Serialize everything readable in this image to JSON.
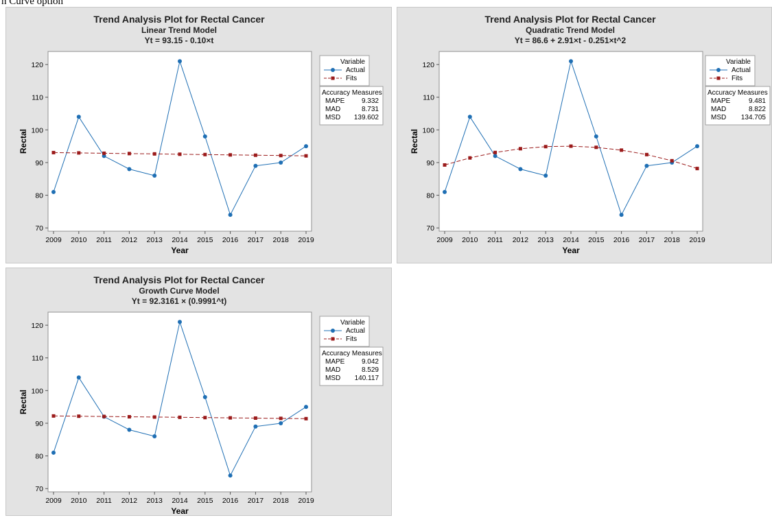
{
  "page": {
    "top_text": "n Curve option"
  },
  "chart_data": [
    {
      "type": "line",
      "title": "Trend Analysis Plot for Rectal Cancer",
      "subtitle": "Linear Trend Model",
      "equation": "Yt = 93.15 - 0.10×t",
      "xlabel": "Year",
      "ylabel": "Rectal",
      "categories": [
        "2009",
        "2010",
        "2011",
        "2012",
        "2013",
        "2014",
        "2015",
        "2016",
        "2017",
        "2018",
        "2019"
      ],
      "ylim": [
        69,
        124
      ],
      "yticks": [
        70,
        80,
        90,
        100,
        110,
        120
      ],
      "legend": {
        "title": "Variable",
        "position": "right",
        "entries": [
          "Actual",
          "Fits"
        ]
      },
      "series": [
        {
          "name": "Actual",
          "color": "#1f6fb4",
          "marker": "circle",
          "line": "solid",
          "values": [
            81,
            104,
            92,
            88,
            86,
            121,
            98,
            74,
            89,
            90,
            95
          ]
        },
        {
          "name": "Fits",
          "color": "#9b1b1b",
          "marker": "square",
          "line": "dashed",
          "values": [
            93.05,
            92.95,
            92.85,
            92.75,
            92.65,
            92.55,
            92.45,
            92.35,
            92.25,
            92.15,
            92.05
          ]
        }
      ],
      "accuracy": {
        "title": "Accuracy Measures",
        "rows": [
          {
            "label": "MAPE",
            "value": "9.332"
          },
          {
            "label": "MAD",
            "value": "8.731"
          },
          {
            "label": "MSD",
            "value": "139.602"
          }
        ]
      },
      "grid": false
    },
    {
      "type": "line",
      "title": "Trend Analysis Plot for Rectal Cancer",
      "subtitle": "Quadratic Trend Model",
      "equation": "Yt = 86.6 + 2.91×t - 0.251×t^2",
      "xlabel": "Year",
      "ylabel": "Rectal",
      "categories": [
        "2009",
        "2010",
        "2011",
        "2012",
        "2013",
        "2014",
        "2015",
        "2016",
        "2017",
        "2018",
        "2019"
      ],
      "ylim": [
        69,
        124
      ],
      "yticks": [
        70,
        80,
        90,
        100,
        110,
        120
      ],
      "legend": {
        "title": "Variable",
        "position": "right",
        "entries": [
          "Actual",
          "Fits"
        ]
      },
      "series": [
        {
          "name": "Actual",
          "color": "#1f6fb4",
          "marker": "circle",
          "line": "solid",
          "values": [
            81,
            104,
            92,
            88,
            86,
            121,
            98,
            74,
            89,
            90,
            95
          ]
        },
        {
          "name": "Fits",
          "color": "#9b1b1b",
          "marker": "square",
          "line": "dashed",
          "values": [
            89.26,
            91.42,
            93.08,
            94.24,
            94.88,
            95.02,
            94.66,
            93.8,
            92.44,
            90.56,
            88.18
          ]
        }
      ],
      "accuracy": {
        "title": "Accuracy Measures",
        "rows": [
          {
            "label": "MAPE",
            "value": "9.481"
          },
          {
            "label": "MAD",
            "value": "8.822"
          },
          {
            "label": "MSD",
            "value": "134.705"
          }
        ]
      },
      "grid": false
    },
    {
      "type": "line",
      "title": "Trend Analysis Plot for Rectal Cancer",
      "subtitle": "Growth Curve Model",
      "equation": "Yt = 92.3161 × (0.9991^t)",
      "xlabel": "Year",
      "ylabel": "Rectal",
      "categories": [
        "2009",
        "2010",
        "2011",
        "2012",
        "2013",
        "2014",
        "2015",
        "2016",
        "2017",
        "2018",
        "2019"
      ],
      "ylim": [
        69,
        124
      ],
      "yticks": [
        70,
        80,
        90,
        100,
        110,
        120
      ],
      "legend": {
        "title": "Variable",
        "position": "right",
        "entries": [
          "Actual",
          "Fits"
        ]
      },
      "series": [
        {
          "name": "Actual",
          "color": "#1f6fb4",
          "marker": "circle",
          "line": "solid",
          "values": [
            81,
            104,
            92,
            88,
            86,
            121,
            98,
            74,
            89,
            90,
            95
          ]
        },
        {
          "name": "Fits",
          "color": "#9b1b1b",
          "marker": "square",
          "line": "dashed",
          "values": [
            92.23,
            92.15,
            92.07,
            91.98,
            91.9,
            91.82,
            91.73,
            91.65,
            91.57,
            91.49,
            91.4
          ]
        }
      ],
      "accuracy": {
        "title": "Accuracy Measures",
        "rows": [
          {
            "label": "MAPE",
            "value": "9.042"
          },
          {
            "label": "MAD",
            "value": "8.529"
          },
          {
            "label": "MSD",
            "value": "140.117"
          }
        ]
      },
      "grid": false
    }
  ]
}
